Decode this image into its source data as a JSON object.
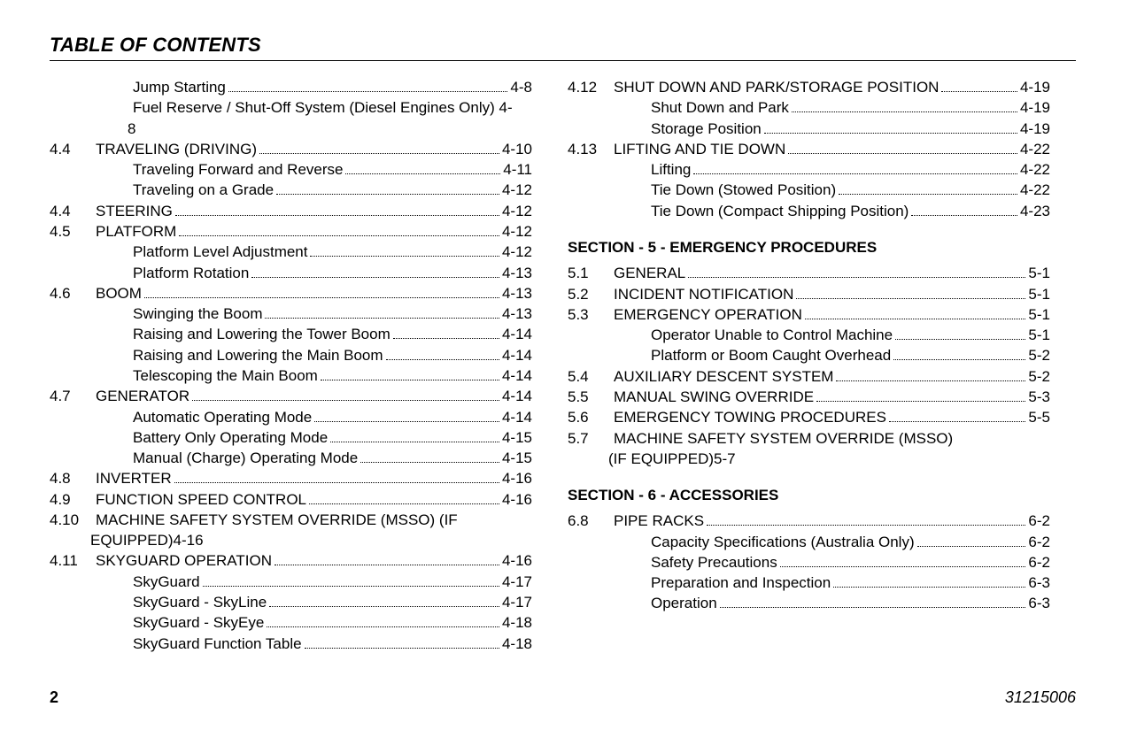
{
  "header": {
    "title": "TABLE OF CONTENTS"
  },
  "footer": {
    "page_number": "2",
    "doc_number": "31215006"
  },
  "columns": {
    "left": [
      {
        "type": "sub",
        "title": "Jump Starting",
        "page": "4-8"
      },
      {
        "type": "wrap-sub",
        "line1": "Fuel Reserve / Shut-Off System (Diesel Engines Only)  4-",
        "line2": "8"
      },
      {
        "type": "lvl1",
        "num": "4.4",
        "title": "TRAVELING (DRIVING)",
        "page": "4-10"
      },
      {
        "type": "sub",
        "title": "Traveling Forward and Reverse",
        "page": "4-11"
      },
      {
        "type": "sub",
        "title": "Traveling on a Grade",
        "page": "4-12"
      },
      {
        "type": "lvl1",
        "num": "4.4",
        "title": "STEERING",
        "page": "4-12"
      },
      {
        "type": "lvl1",
        "num": "4.5",
        "title": "PLATFORM",
        "page": "4-12"
      },
      {
        "type": "sub",
        "title": "Platform Level Adjustment",
        "page": "4-12"
      },
      {
        "type": "sub",
        "title": "Platform Rotation",
        "page": "4-13"
      },
      {
        "type": "lvl1",
        "num": "4.6",
        "title": "BOOM",
        "page": "4-13"
      },
      {
        "type": "sub",
        "title": "Swinging the Boom",
        "page": "4-13"
      },
      {
        "type": "sub",
        "title": "Raising and Lowering the Tower Boom",
        "page": "4-14"
      },
      {
        "type": "sub",
        "title": "Raising and Lowering the Main Boom",
        "page": "4-14"
      },
      {
        "type": "sub",
        "title": "Telescoping the Main Boom",
        "page": "4-14"
      },
      {
        "type": "lvl1",
        "num": "4.7",
        "title": "GENERATOR",
        "page": "4-14"
      },
      {
        "type": "sub",
        "title": "Automatic Operating Mode",
        "page": "4-14"
      },
      {
        "type": "sub",
        "title": "Battery Only Operating Mode",
        "page": "4-15"
      },
      {
        "type": "sub",
        "title": "Manual (Charge) Operating Mode",
        "page": "4-15"
      },
      {
        "type": "lvl1",
        "num": "4.8",
        "title": "INVERTER",
        "page": "4-16"
      },
      {
        "type": "lvl1",
        "num": "4.9",
        "title": "FUNCTION SPEED CONTROL",
        "page": "4-16"
      },
      {
        "type": "wrap-lvl1",
        "num": "4.10",
        "line1": "MACHINE SAFETY SYSTEM OVERRIDE (MSSO) (IF",
        "line2": "EQUIPPED)4-16"
      },
      {
        "type": "lvl1",
        "num": "4.11",
        "title": "SKYGUARD OPERATION",
        "page": "4-16"
      },
      {
        "type": "sub",
        "title": "SkyGuard",
        "page": "4-17"
      },
      {
        "type": "sub",
        "title": "SkyGuard - SkyLine",
        "page": "4-17"
      },
      {
        "type": "sub",
        "title": "SkyGuard - SkyEye",
        "page": "4-18"
      },
      {
        "type": "sub",
        "title": "SkyGuard Function Table",
        "page": "4-18"
      }
    ],
    "right": [
      {
        "type": "lvl1",
        "num": "4.12",
        "title": "SHUT DOWN AND PARK/STORAGE POSITION",
        "page": "4-19"
      },
      {
        "type": "sub",
        "title": "Shut Down and Park",
        "page": "4-19"
      },
      {
        "type": "sub",
        "title": "Storage Position",
        "page": "4-19"
      },
      {
        "type": "lvl1",
        "num": "4.13",
        "title": "LIFTING AND TIE DOWN",
        "page": "4-22"
      },
      {
        "type": "sub",
        "title": "Lifting",
        "page": "4-22"
      },
      {
        "type": "sub",
        "title": "Tie Down (Stowed Position)",
        "page": "4-22"
      },
      {
        "type": "sub",
        "title": "Tie Down (Compact Shipping Position)",
        "page": "4-23"
      },
      {
        "type": "section",
        "title": "SECTION - 5 - EMERGENCY PROCEDURES"
      },
      {
        "type": "lvl1",
        "num": "5.1",
        "title": "GENERAL",
        "page": "5-1"
      },
      {
        "type": "lvl1",
        "num": "5.2",
        "title": "INCIDENT NOTIFICATION",
        "page": "5-1"
      },
      {
        "type": "lvl1",
        "num": "5.3",
        "title": "EMERGENCY OPERATION",
        "page": "5-1"
      },
      {
        "type": "sub",
        "title": "Operator Unable to Control Machine",
        "page": "5-1"
      },
      {
        "type": "sub",
        "title": "Platform or Boom Caught Overhead",
        "page": "5-2"
      },
      {
        "type": "lvl1",
        "num": "5.4",
        "title": "AUXILIARY DESCENT SYSTEM",
        "page": "5-2"
      },
      {
        "type": "lvl1",
        "num": "5.5",
        "title": "MANUAL SWING OVERRIDE",
        "page": "5-3"
      },
      {
        "type": "lvl1",
        "num": "5.6",
        "title": "EMERGENCY TOWING PROCEDURES",
        "page": "5-5"
      },
      {
        "type": "wrap-lvl1",
        "num": "5.7",
        "line1": "MACHINE SAFETY SYSTEM OVERRIDE (MSSO)",
        "line2": "(IF EQUIPPED)5-7"
      },
      {
        "type": "section",
        "title": "SECTION - 6 - ACCESSORIES"
      },
      {
        "type": "lvl1",
        "num": "6.8",
        "title": "PIPE RACKS",
        "page": "6-2"
      },
      {
        "type": "sub",
        "title": "Capacity Specifications (Australia Only)",
        "page": "6-2"
      },
      {
        "type": "sub",
        "title": "Safety Precautions",
        "page": "6-2"
      },
      {
        "type": "sub",
        "title": "Preparation and Inspection",
        "page": "6-3"
      },
      {
        "type": "sub",
        "title": "Operation",
        "page": "6-3"
      }
    ]
  }
}
